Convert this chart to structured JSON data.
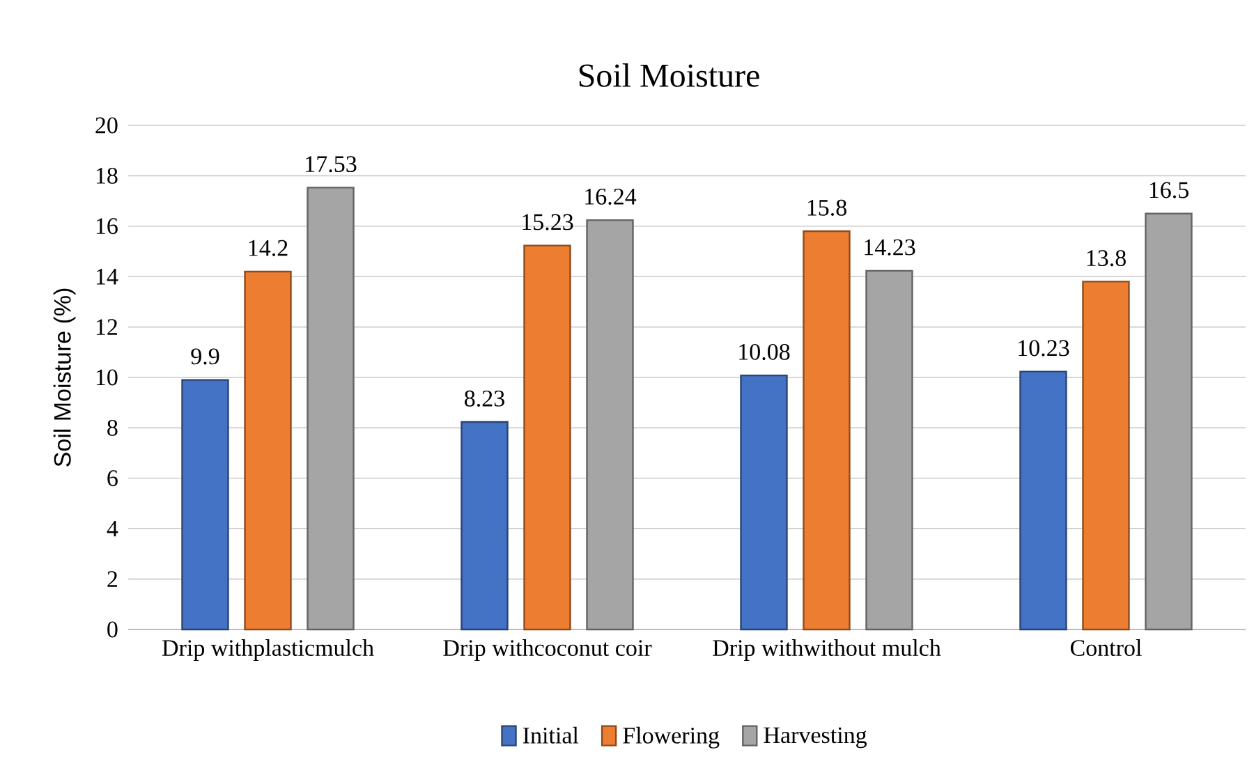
{
  "chart_data": {
    "type": "bar",
    "title": "Soil Moisture",
    "ylabel": "Soil Moisture (%)",
    "categories": [
      "Drip withplasticmulch",
      "Drip withcoconut coir",
      "Drip withwithout mulch",
      "Control"
    ],
    "series": [
      {
        "name": "Initial",
        "color": "#4472c4",
        "values": [
          9.9,
          8.23,
          10.08,
          10.23
        ]
      },
      {
        "name": "Flowering",
        "color": "#ed7d31",
        "values": [
          14.2,
          15.23,
          15.8,
          13.8
        ]
      },
      {
        "name": "Harvesting",
        "color": "#a5a5a5",
        "values": [
          17.53,
          16.24,
          14.23,
          16.5
        ]
      }
    ],
    "ylim": [
      0,
      20
    ],
    "yticks": [
      0,
      2,
      4,
      6,
      8,
      10,
      12,
      14,
      16,
      18,
      20
    ],
    "grid": "y",
    "legend": "bottom",
    "data_labels": true
  }
}
